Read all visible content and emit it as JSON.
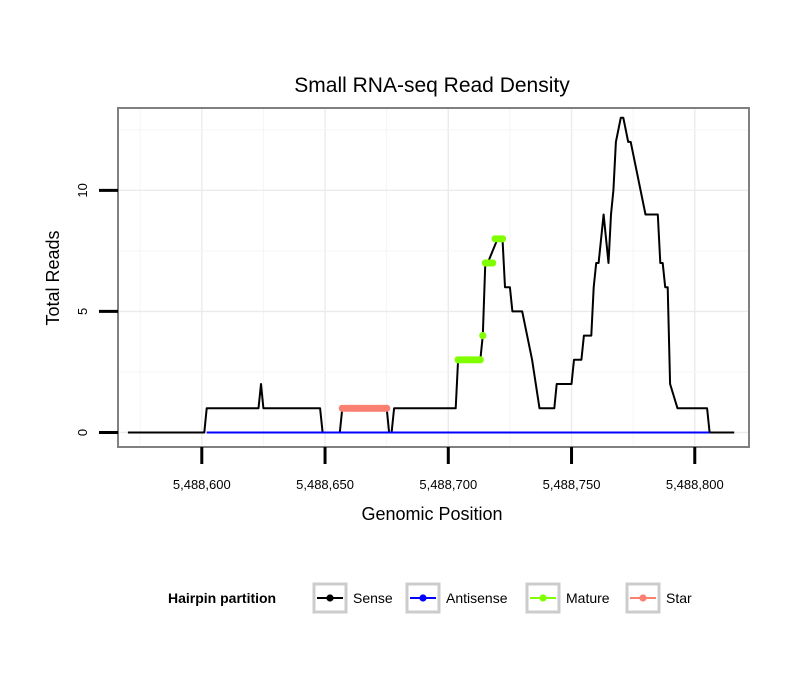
{
  "chart_data": {
    "type": "line",
    "title": "Small RNA-seq Read Density",
    "xlabel": "Genomic Position",
    "ylabel": "Total Reads",
    "xlim": [
      5488566,
      5488822
    ],
    "ylim": [
      -0.6,
      13.4
    ],
    "x_ticks": [
      {
        "value": 5488600,
        "label": "5,488,600"
      },
      {
        "value": 5488650,
        "label": "5,488,650"
      },
      {
        "value": 5488700,
        "label": "5,488,700"
      },
      {
        "value": 5488750,
        "label": "5,488,750"
      },
      {
        "value": 5488800,
        "label": "5,488,800"
      }
    ],
    "y_ticks": [
      {
        "value": 0,
        "label": "0"
      },
      {
        "value": 5,
        "label": "5"
      },
      {
        "value": 10,
        "label": "10"
      }
    ],
    "grid": true,
    "legend": {
      "title": "Hairpin partition",
      "placement": "bottom",
      "entries": [
        {
          "name": "Sense",
          "color": "#000000"
        },
        {
          "name": "Antisense",
          "color": "#0000ff"
        },
        {
          "name": "Mature",
          "color": "#7fff00"
        },
        {
          "name": "Star",
          "color": "#fa8072"
        }
      ]
    },
    "series": [
      {
        "name": "Sense",
        "color": "#000000",
        "style": "line",
        "x": [
          5488570,
          5488601,
          5488602,
          5488623,
          5488624,
          5488625,
          5488648,
          5488649,
          5488656,
          5488657,
          5488675,
          5488676,
          5488677,
          5488678,
          5488703,
          5488704,
          5488713,
          5488714,
          5488715,
          5488716,
          5488720,
          5488721,
          5488722,
          5488723,
          5488725,
          5488726,
          5488730,
          5488734,
          5488737,
          5488739,
          5488743,
          5488744,
          5488750,
          5488751,
          5488754,
          5488755,
          5488758,
          5488759,
          5488760,
          5488761,
          5488762,
          5488763,
          5488765,
          5488766,
          5488767,
          5488768,
          5488770,
          5488771,
          5488773,
          5488774,
          5488780,
          5488781,
          5488785,
          5488786,
          5488787,
          5488788,
          5488789,
          5488790,
          5488793,
          5488797,
          5488801,
          5488805,
          5488806,
          5488816
        ],
        "y": [
          0,
          0,
          1,
          1,
          2,
          1,
          1,
          0,
          0,
          1,
          1,
          0,
          0,
          1,
          1,
          3,
          3,
          4,
          7,
          7,
          8,
          8,
          8,
          6,
          6,
          5,
          5,
          3,
          1,
          1,
          1,
          2,
          2,
          3,
          3,
          4,
          4,
          6,
          7,
          7,
          8,
          9,
          7,
          9,
          10,
          12,
          13,
          13,
          12,
          12,
          9,
          9,
          9,
          7,
          7,
          6,
          6,
          2,
          1,
          1,
          1,
          1,
          0,
          0
        ]
      },
      {
        "name": "Antisense",
        "color": "#0000ff",
        "style": "line",
        "x": [
          5488602,
          5488806
        ],
        "y": [
          0,
          0
        ]
      },
      {
        "name": "Mature",
        "color": "#7fff00",
        "style": "points",
        "x": [
          5488704,
          5488705,
          5488706,
          5488707,
          5488708,
          5488709,
          5488710,
          5488711,
          5488712,
          5488713,
          5488714,
          5488715,
          5488716,
          5488717,
          5488718,
          5488719,
          5488720,
          5488721,
          5488722
        ],
        "y": [
          3,
          3,
          3,
          3,
          3,
          3,
          3,
          3,
          3,
          3,
          4,
          7,
          7,
          7,
          7,
          8,
          8,
          8,
          8
        ]
      },
      {
        "name": "Star",
        "color": "#fa8072",
        "style": "points",
        "x": [
          5488657,
          5488658,
          5488659,
          5488660,
          5488661,
          5488662,
          5488663,
          5488664,
          5488665,
          5488666,
          5488667,
          5488668,
          5488669,
          5488670,
          5488671,
          5488672,
          5488673,
          5488674,
          5488675
        ],
        "y": [
          1,
          1,
          1,
          1,
          1,
          1,
          1,
          1,
          1,
          1,
          1,
          1,
          1,
          1,
          1,
          1,
          1,
          1,
          1
        ]
      }
    ]
  }
}
